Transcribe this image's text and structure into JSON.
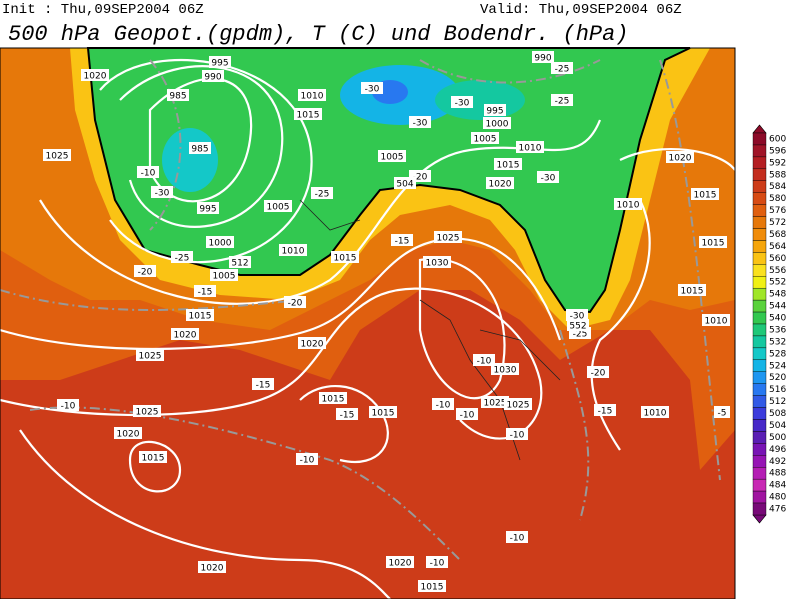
{
  "header": {
    "init": "Init : Thu,09SEP2004 06Z",
    "valid": "Valid: Thu,09SEP2004 06Z",
    "title": "500 hPa Geopot.(gpdm), T (C) und Bodendr. (hPa)"
  },
  "colorbar": {
    "levels": [
      600,
      596,
      592,
      588,
      584,
      580,
      576,
      572,
      568,
      564,
      560,
      556,
      552,
      548,
      544,
      540,
      536,
      532,
      528,
      524,
      520,
      516,
      512,
      508,
      504,
      500,
      496,
      492,
      488,
      484,
      480,
      476
    ],
    "colors": [
      "#8c0a28",
      "#a01428",
      "#b41e23",
      "#c32d1e",
      "#cd3c19",
      "#d74b14",
      "#e05f0f",
      "#e6780a",
      "#f08c0a",
      "#f5a50a",
      "#fac314",
      "#fae11e",
      "#f0f014",
      "#a0e628",
      "#5ad23c",
      "#32c850",
      "#1ec878",
      "#14c8a0",
      "#14c8c8",
      "#14b4e6",
      "#1e96f0",
      "#2878f0",
      "#325ae6",
      "#3c3cdc",
      "#4628c8",
      "#5a1eb4",
      "#7814b4",
      "#9614b4",
      "#b41eb4",
      "#c828b4",
      "#a014a0",
      "#780a78"
    ]
  },
  "map_labels": [
    "1020",
    "995",
    "990",
    "985",
    "1010",
    "1015",
    "-30",
    "-30",
    "995",
    "1000",
    "1005",
    "-30",
    "-25",
    "-25",
    "990",
    "1010",
    "1015",
    "1020",
    "-30",
    "1005",
    "-20",
    "504",
    "985",
    "-30",
    "-10",
    "1025",
    "995",
    "1005",
    "-25",
    "1000",
    "1010",
    "1015",
    "-15",
    "1025",
    "1030",
    "1010",
    "1020",
    "1015",
    "1015",
    "1015",
    "1010",
    "-25",
    "-20",
    "1005",
    "-15",
    "-20",
    "1015",
    "1020",
    "1025",
    "1020",
    "-15",
    "-10",
    "1025",
    "1020",
    "1015",
    "1015",
    "-15",
    "1015",
    "-10",
    "-10",
    "1025",
    "1025",
    "1030",
    "-10",
    "-30",
    "-25",
    "-20",
    "-15",
    "1010",
    "-10",
    "-10",
    "-10",
    "1020",
    "-10",
    "1015",
    "1020",
    "512",
    "552",
    "-5"
  ]
}
